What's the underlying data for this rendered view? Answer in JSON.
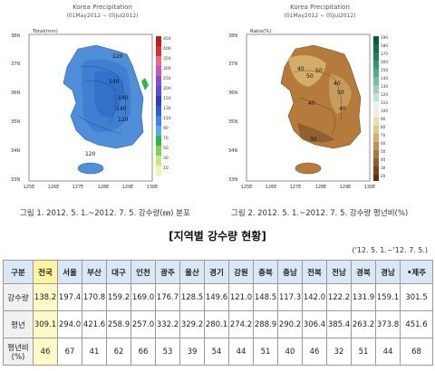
{
  "map1": {
    "title": "Korea Precipitation",
    "subtitle": "(01May2012 ~ 05Jul2012)",
    "unit": "Total(mm)",
    "lat_labels": [
      "38N",
      "37N",
      "36N",
      "35N",
      "34N",
      "33N"
    ],
    "lon_labels": [
      "125E",
      "126E",
      "127E",
      "128E",
      "129E",
      "130E"
    ],
    "scale_labels": [
      "450",
      "400",
      "350",
      "300",
      "250",
      "200",
      "150",
      "130",
      "110",
      "90",
      "70",
      "50",
      "30",
      "10"
    ],
    "contour_labels": [
      "120",
      "140",
      "140",
      "140",
      "120",
      "120"
    ],
    "colors": {
      "land": "#4f8fd9",
      "ocean": "#ffffff"
    }
  },
  "map2": {
    "title": "Korea Precipitation",
    "subtitle": "(01May2012 ~ 05Jul2012)",
    "unit": "Ratio(%)",
    "lat_labels": [
      "38N",
      "37N",
      "36N",
      "35N",
      "34N",
      "33N"
    ],
    "lon_labels": [
      "125E",
      "126E",
      "127E",
      "128E",
      "129E",
      "130E"
    ],
    "scale_labels": [
      "190",
      "180",
      "170",
      "160",
      "150",
      "140",
      "130",
      "120",
      "110",
      "100",
      "90",
      "80",
      "70",
      "60",
      "50",
      "40",
      "30",
      "20"
    ],
    "contour_labels": [
      "40",
      "50",
      "50",
      "40",
      "50",
      "40",
      "40",
      "30"
    ],
    "colors": {
      "land": "#b47b3c",
      "ocean": "#ffffff"
    }
  },
  "captions": {
    "fig1": "그림 1. 2012. 5. 1.~2012. 7. 5. 강수량(㎜) 분포",
    "fig2": "그림 2. 2012. 5. 1.~2012. 7. 5. 강수량 평년비(%)"
  },
  "section_title": "[지역별 강수량 현황]",
  "period": "('12. 5. 1.~'12. 7. 5.)",
  "table": {
    "columns": [
      "구분",
      "전국",
      "서울",
      "부산",
      "대구",
      "인천",
      "광주",
      "울산",
      "경기",
      "강원",
      "충북",
      "충남",
      "전북",
      "전남",
      "경북",
      "경남",
      "•제주"
    ],
    "rows": [
      {
        "label": "강수량",
        "values": [
          "138.2",
          "197.4",
          "170.8",
          "159.2",
          "169.0",
          "176.7",
          "128.5",
          "149.6",
          "121.0",
          "148.5",
          "117.3",
          "142.0",
          "122.2",
          "131.9",
          "159.1",
          "301.5"
        ]
      },
      {
        "label": "평년",
        "values": [
          "309.1",
          "294.0",
          "421.6",
          "258.9",
          "257.0",
          "332.2",
          "329.2",
          "280.1",
          "274.2",
          "288.9",
          "290.2",
          "306.4",
          "385.4",
          "263.2",
          "373.8",
          "451.6"
        ]
      },
      {
        "label": "평년비 (%)",
        "values": [
          "46",
          "67",
          "41",
          "62",
          "66",
          "53",
          "39",
          "54",
          "44",
          "51",
          "40",
          "46",
          "32",
          "51",
          "44",
          "68"
        ]
      }
    ]
  }
}
